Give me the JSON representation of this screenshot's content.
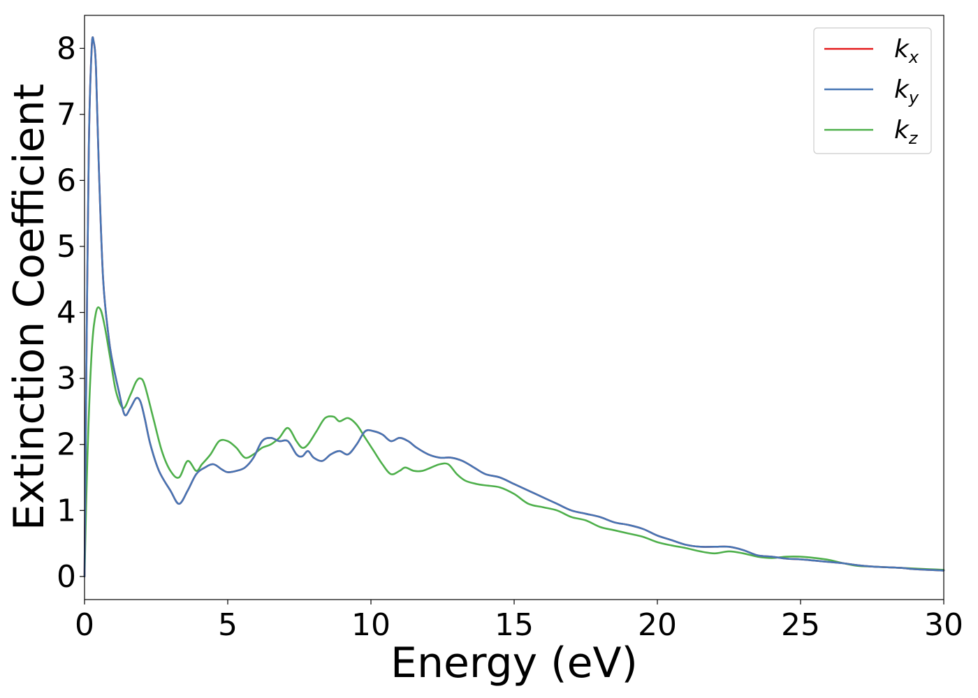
{
  "chart_data": {
    "type": "line",
    "title": "",
    "xlabel": "Energy (eV)",
    "ylabel": "Extinction Coefficient",
    "xlim": [
      0,
      30
    ],
    "ylim": [
      -0.35,
      8.5
    ],
    "xticks": [
      0,
      5,
      10,
      15,
      20,
      25,
      30
    ],
    "yticks": [
      0,
      1,
      2,
      3,
      4,
      5,
      6,
      7,
      8
    ],
    "grid": false,
    "legend": {
      "position": "top-right"
    },
    "series": [
      {
        "name": "k_x",
        "label_main": "k",
        "label_sub": "x",
        "color": "#e41a1c",
        "x": [
          0,
          0.05,
          0.15,
          0.25,
          0.32,
          0.4,
          0.5,
          0.65,
          0.85,
          1.0,
          1.2,
          1.4,
          1.6,
          1.8,
          1.95,
          2.1,
          2.3,
          2.6,
          3.0,
          3.3,
          3.6,
          3.9,
          4.2,
          4.5,
          4.8,
          5.0,
          5.3,
          5.6,
          5.9,
          6.2,
          6.5,
          6.8,
          7.1,
          7.4,
          7.6,
          7.8,
          8.0,
          8.3,
          8.6,
          8.9,
          9.2,
          9.5,
          9.8,
          10.1,
          10.4,
          10.7,
          11.0,
          11.3,
          11.6,
          12.0,
          12.4,
          12.8,
          13.2,
          13.6,
          14.0,
          14.5,
          15.0,
          15.5,
          16.0,
          16.5,
          17.0,
          17.5,
          18.0,
          18.5,
          19.0,
          19.5,
          20.0,
          20.5,
          21.0,
          21.5,
          22.0,
          22.5,
          23.0,
          23.5,
          24.0,
          24.5,
          25.0,
          25.5,
          26.0,
          26.5,
          27.0,
          27.5,
          28.0,
          28.5,
          29.0,
          29.5,
          30.0
        ],
        "y": [
          0.0,
          2.5,
          6.5,
          8.0,
          8.1,
          7.7,
          6.2,
          4.5,
          3.6,
          3.2,
          2.8,
          2.45,
          2.55,
          2.7,
          2.65,
          2.4,
          2.0,
          1.6,
          1.3,
          1.1,
          1.3,
          1.55,
          1.65,
          1.7,
          1.62,
          1.58,
          1.6,
          1.65,
          1.8,
          2.05,
          2.1,
          2.05,
          2.05,
          1.85,
          1.82,
          1.9,
          1.8,
          1.75,
          1.85,
          1.9,
          1.85,
          2.0,
          2.2,
          2.2,
          2.15,
          2.05,
          2.1,
          2.05,
          1.95,
          1.85,
          1.8,
          1.8,
          1.75,
          1.65,
          1.55,
          1.5,
          1.4,
          1.3,
          1.2,
          1.1,
          1.0,
          0.95,
          0.9,
          0.82,
          0.78,
          0.72,
          0.62,
          0.55,
          0.48,
          0.45,
          0.45,
          0.45,
          0.4,
          0.32,
          0.3,
          0.27,
          0.26,
          0.24,
          0.22,
          0.2,
          0.17,
          0.15,
          0.14,
          0.13,
          0.11,
          0.1,
          0.09
        ]
      },
      {
        "name": "k_y",
        "label_main": "k",
        "label_sub": "y",
        "color": "#4575b4",
        "x": [
          0,
          0.05,
          0.15,
          0.25,
          0.32,
          0.4,
          0.5,
          0.65,
          0.85,
          1.0,
          1.2,
          1.4,
          1.6,
          1.8,
          1.95,
          2.1,
          2.3,
          2.6,
          3.0,
          3.3,
          3.6,
          3.9,
          4.2,
          4.5,
          4.8,
          5.0,
          5.3,
          5.6,
          5.9,
          6.2,
          6.5,
          6.8,
          7.1,
          7.4,
          7.6,
          7.8,
          8.0,
          8.3,
          8.6,
          8.9,
          9.2,
          9.5,
          9.8,
          10.1,
          10.4,
          10.7,
          11.0,
          11.3,
          11.6,
          12.0,
          12.4,
          12.8,
          13.2,
          13.6,
          14.0,
          14.5,
          15.0,
          15.5,
          16.0,
          16.5,
          17.0,
          17.5,
          18.0,
          18.5,
          19.0,
          19.5,
          20.0,
          20.5,
          21.0,
          21.5,
          22.0,
          22.5,
          23.0,
          23.5,
          24.0,
          24.5,
          25.0,
          25.5,
          26.0,
          26.5,
          27.0,
          27.5,
          28.0,
          28.5,
          29.0,
          29.5,
          30.0
        ],
        "y": [
          0.0,
          2.5,
          6.5,
          8.0,
          8.1,
          7.7,
          6.2,
          4.5,
          3.6,
          3.2,
          2.8,
          2.45,
          2.55,
          2.7,
          2.65,
          2.4,
          2.0,
          1.6,
          1.3,
          1.1,
          1.3,
          1.55,
          1.65,
          1.7,
          1.62,
          1.58,
          1.6,
          1.65,
          1.8,
          2.05,
          2.1,
          2.05,
          2.05,
          1.85,
          1.82,
          1.9,
          1.8,
          1.75,
          1.85,
          1.9,
          1.85,
          2.0,
          2.2,
          2.2,
          2.15,
          2.05,
          2.1,
          2.05,
          1.95,
          1.85,
          1.8,
          1.8,
          1.75,
          1.65,
          1.55,
          1.5,
          1.4,
          1.3,
          1.2,
          1.1,
          1.0,
          0.95,
          0.9,
          0.82,
          0.78,
          0.72,
          0.62,
          0.55,
          0.48,
          0.45,
          0.45,
          0.45,
          0.4,
          0.32,
          0.3,
          0.27,
          0.26,
          0.24,
          0.22,
          0.2,
          0.17,
          0.15,
          0.14,
          0.13,
          0.11,
          0.1,
          0.09
        ]
      },
      {
        "name": "k_z",
        "label_main": "k",
        "label_sub": "z",
        "color": "#4daf4a",
        "x": [
          0,
          0.1,
          0.25,
          0.4,
          0.55,
          0.7,
          0.9,
          1.1,
          1.35,
          1.6,
          1.8,
          1.95,
          2.1,
          2.4,
          2.7,
          3.0,
          3.3,
          3.6,
          3.9,
          4.1,
          4.4,
          4.7,
          5.0,
          5.3,
          5.6,
          5.9,
          6.2,
          6.5,
          6.8,
          7.1,
          7.4,
          7.6,
          7.8,
          8.1,
          8.4,
          8.7,
          8.9,
          9.2,
          9.5,
          9.8,
          10.1,
          10.4,
          10.7,
          11.0,
          11.2,
          11.5,
          11.8,
          12.1,
          12.4,
          12.7,
          13.0,
          13.3,
          13.7,
          14.0,
          14.5,
          15.0,
          15.5,
          16.0,
          16.5,
          17.0,
          17.5,
          18.0,
          18.5,
          19.0,
          19.5,
          20.0,
          20.5,
          21.0,
          21.5,
          22.0,
          22.5,
          23.0,
          23.5,
          24.0,
          24.5,
          25.0,
          25.5,
          26.0,
          26.5,
          27.0,
          27.5,
          28.0,
          28.5,
          29.0,
          29.5,
          30.0
        ],
        "y": [
          0.0,
          1.8,
          3.4,
          4.0,
          4.05,
          3.8,
          3.3,
          2.8,
          2.55,
          2.75,
          2.95,
          3.0,
          2.9,
          2.4,
          1.9,
          1.6,
          1.5,
          1.75,
          1.6,
          1.7,
          1.85,
          2.05,
          2.05,
          1.95,
          1.8,
          1.85,
          1.95,
          2.0,
          2.1,
          2.25,
          2.05,
          1.95,
          2.0,
          2.2,
          2.4,
          2.42,
          2.35,
          2.4,
          2.3,
          2.1,
          1.9,
          1.7,
          1.55,
          1.6,
          1.65,
          1.6,
          1.6,
          1.65,
          1.7,
          1.7,
          1.55,
          1.45,
          1.4,
          1.38,
          1.35,
          1.25,
          1.1,
          1.05,
          1.0,
          0.9,
          0.85,
          0.75,
          0.7,
          0.65,
          0.6,
          0.52,
          0.47,
          0.43,
          0.38,
          0.35,
          0.38,
          0.35,
          0.3,
          0.28,
          0.3,
          0.3,
          0.28,
          0.25,
          0.2,
          0.16,
          0.15,
          0.14,
          0.13,
          0.12,
          0.11,
          0.1
        ]
      }
    ]
  }
}
